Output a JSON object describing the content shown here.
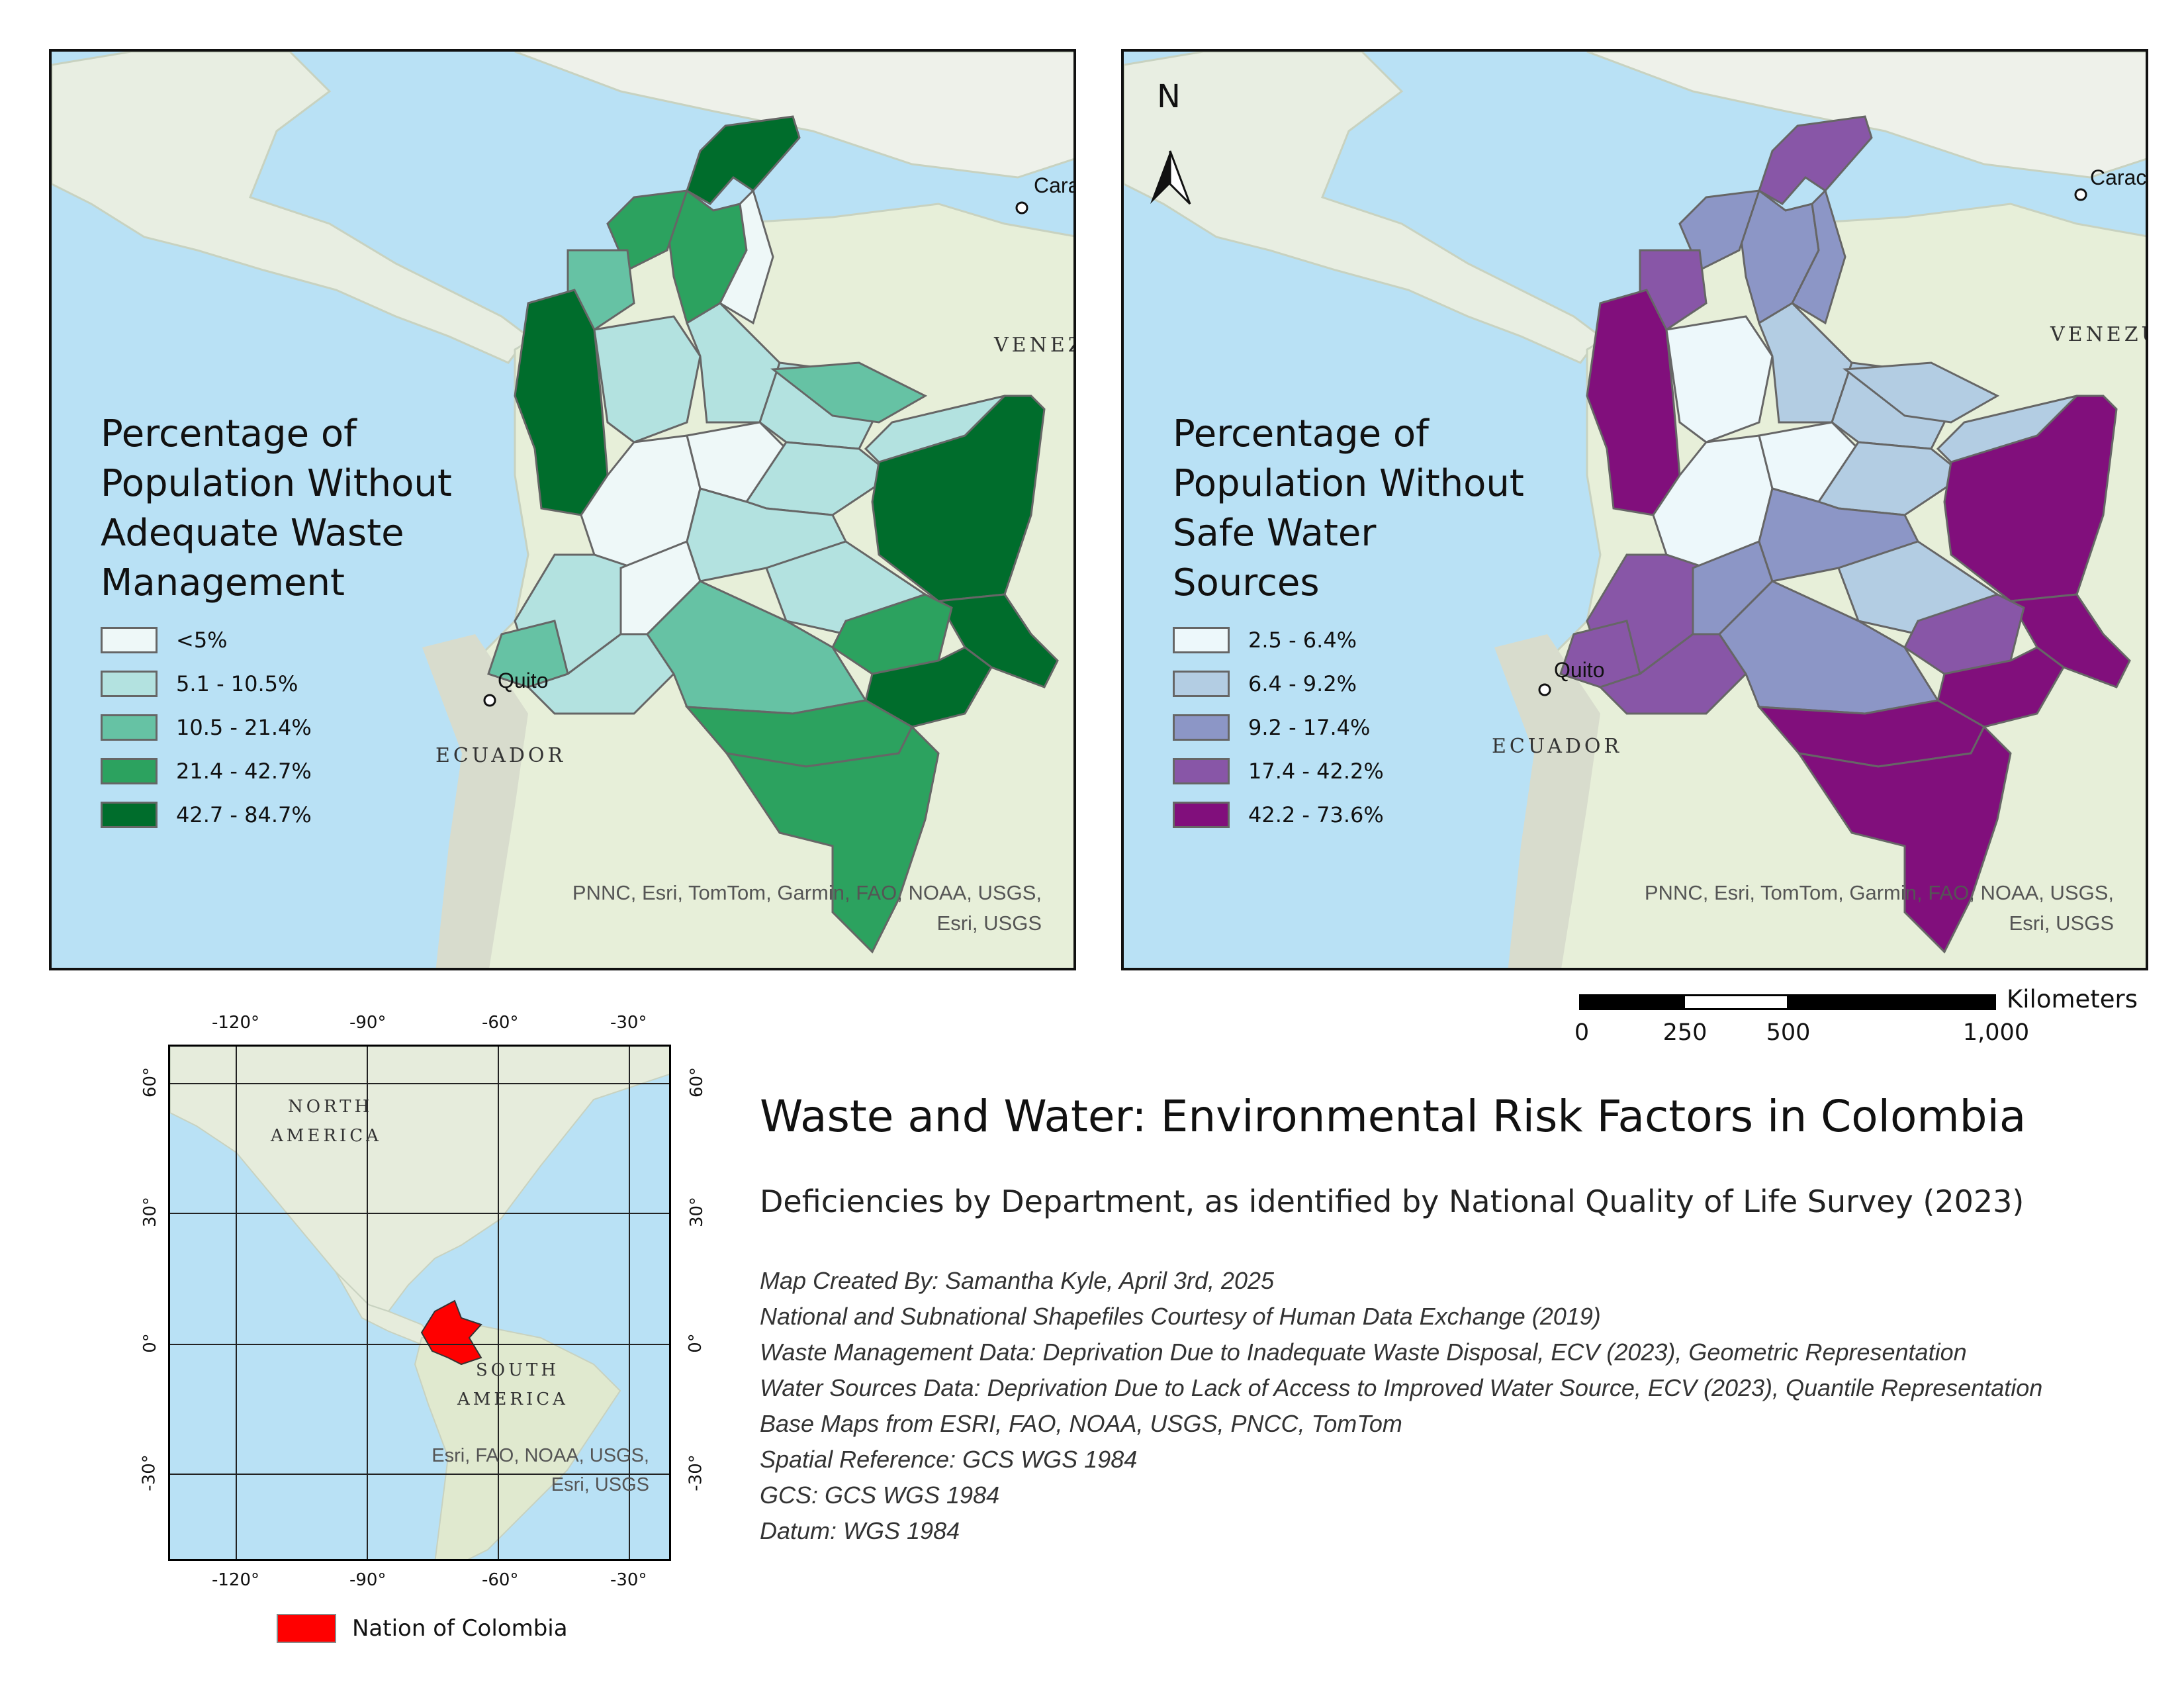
{
  "waste_map": {
    "legend_title": "Percentage of\nPopulation Without\nAdequate Waste\nManagement",
    "classes": [
      {
        "label": "<5%",
        "color": "#eef8f8"
      },
      {
        "label": "5.1 - 10.5%",
        "color": "#b3e2e0"
      },
      {
        "label": "10.5 - 21.4%",
        "color": "#66c2a4"
      },
      {
        "label": "21.4 - 42.7%",
        "color": "#2ca25f"
      },
      {
        "label": "42.7 - 84.7%",
        "color": "#006d2c"
      }
    ],
    "credit_line1": "PNNC, Esri, TomTom, Garmin, FAO, NOAA, USGS,",
    "credit_line2": "Esri, USGS",
    "labels": {
      "caracas": "Cara",
      "venezuela": "VENEZ",
      "quito": "Quito",
      "ecuador": "ECUADOR"
    }
  },
  "water_map": {
    "legend_title": "Percentage of\nPopulation Without\nSafe Water\nSources",
    "classes": [
      {
        "label": "2.5 - 6.4%",
        "color": "#edf8fb"
      },
      {
        "label": "6.4 - 9.2%",
        "color": "#b3cde3"
      },
      {
        "label": "9.2 - 17.4%",
        "color": "#8c96c6"
      },
      {
        "label": "17.4 - 42.2%",
        "color": "#8856a7"
      },
      {
        "label": "42.2 - 73.6%",
        "color": "#810f7c"
      }
    ],
    "credit_line1": "PNNC, Esri, TomTom, Garmin, FAO, NOAA, USGS,",
    "credit_line2": "Esri, USGS",
    "north": "N",
    "labels": {
      "caracas": "Carac",
      "venezuela": "VENEZU",
      "quito": "Quito",
      "ecuador": "ECUADOR"
    }
  },
  "scale_bar": {
    "unit": "Kilometers",
    "ticks": [
      "0",
      "250",
      "500",
      "1,000"
    ]
  },
  "title": "Waste and Water: Environmental Risk Factors in Colombia",
  "subtitle": "Deficiencies by Department, as identified by National Quality of Life Survey (2023)",
  "notes": [
    "Map Created By: Samantha Kyle, April 3rd, 2025",
    "National and Subnational Shapefiles Courtesy of Human Data Exchange (2019)",
    "Waste Management Data: Deprivation Due to Inadequate Waste Disposal, ECV (2023), Geometric Representation",
    "Water Sources Data: Deprivation Due to Lack of Access to Improved Water Source, ECV (2023), Quantile Representation",
    "Base Maps from ESRI, FAO, NOAA, USGS, PNCC, TomTom",
    "Spatial Reference: GCS WGS 1984",
    "GCS: GCS WGS 1984",
    "Datum: WGS 1984"
  ],
  "inset": {
    "lon_labels": [
      "-120°",
      "-90°",
      "-60°",
      "-30°"
    ],
    "lat_labels": [
      "60°",
      "30°",
      "0°",
      "-30°"
    ],
    "north_america": [
      "NORTH",
      "AMERICA"
    ],
    "south_america": [
      "SOUTH",
      "AMERICA"
    ],
    "credit_line1": "Esri, FAO, NOAA, USGS,",
    "credit_line2": "Esri, USGS",
    "legend_label": "Nation of Colombia",
    "colombia_color": "#ff0000"
  }
}
